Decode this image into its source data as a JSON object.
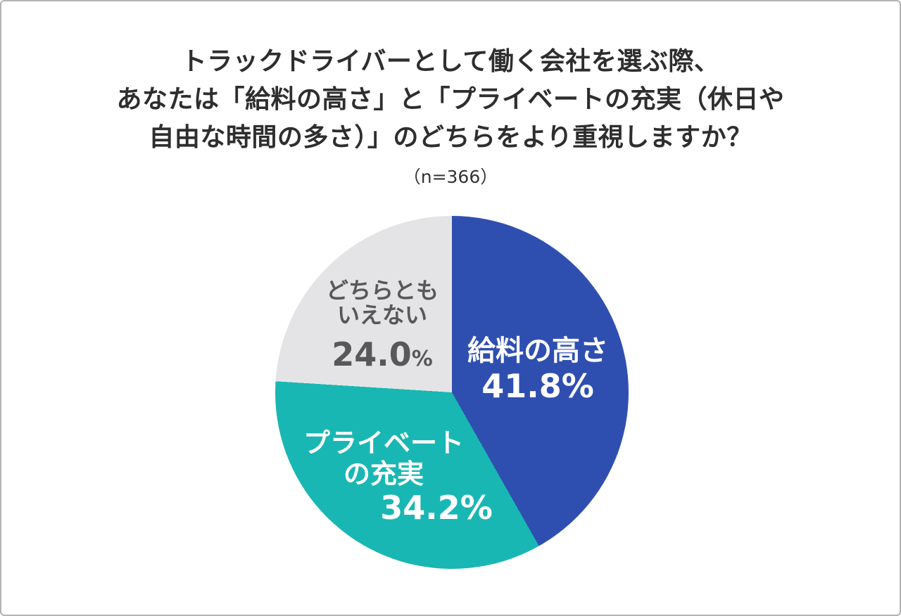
{
  "chart_data": {
    "type": "pie",
    "title": "トラックドライバーとして働く会社を選ぶ際、あなたは「給料の高さ」と「プライベートの充実（休日や自由な時間の多さ）」のどちらをより重視しますか？",
    "title_lines": [
      "トラックドライバーとして働く会社を選ぶ際、",
      "あなたは「給料の高さ」と「プライベートの充実（休日や",
      "自由な時間の多さ）」のどちらをより重視しますか？"
    ],
    "sample_size_label": "（n=366）",
    "start_angle_deg": 0,
    "direction": "clockwise",
    "slices": [
      {
        "label": "給料の高さ",
        "label_lines": [
          "給料の高さ"
        ],
        "value": 41.8,
        "value_text": "41.8",
        "suffix": "%",
        "color": "#2f4fb0",
        "text_color": "#ffffff"
      },
      {
        "label": "プライベートの充実",
        "label_lines": [
          "プライベート",
          "の充実"
        ],
        "value": 34.2,
        "value_text": "34.2",
        "suffix": "%",
        "color": "#19b7b3",
        "text_color": "#ffffff"
      },
      {
        "label": "どちらともいえない",
        "label_lines": [
          "どちらとも",
          "いえない"
        ],
        "value": 24.0,
        "value_text": "24.0",
        "suffix": "%",
        "color": "#e4e4e6",
        "text_color": "#58585a"
      }
    ]
  }
}
